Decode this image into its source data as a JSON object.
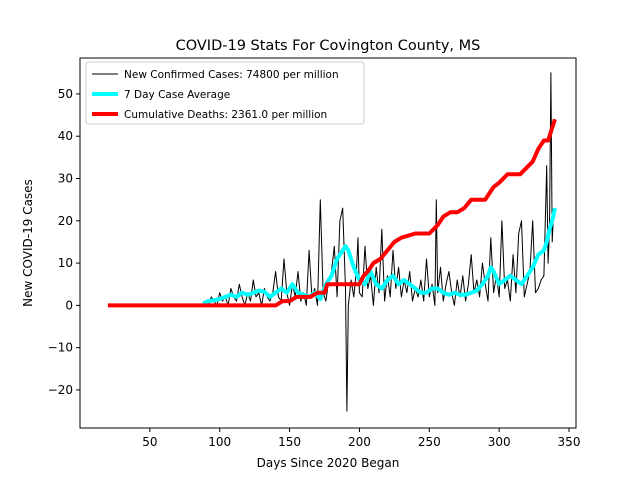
{
  "chart_data": {
    "type": "line",
    "title": "COVID-19 Stats For Covington County, MS",
    "xlabel": "Days Since 2020 Began",
    "ylabel": "New COVID-19 Cases",
    "xlim": [
      0,
      355
    ],
    "ylim": [
      -29,
      58.5
    ],
    "xticks": [
      50,
      100,
      150,
      200,
      250,
      300,
      350
    ],
    "yticks": [
      -20,
      -10,
      0,
      10,
      20,
      30,
      40,
      50
    ],
    "grid": false,
    "legend_position": "top-left",
    "series": [
      {
        "name": "New Confirmed Cases: 74800 per million",
        "color": "#000000",
        "line_width": 1,
        "x": [
          88,
          90,
          92,
          94,
          96,
          98,
          100,
          102,
          104,
          106,
          108,
          110,
          112,
          114,
          116,
          118,
          120,
          122,
          124,
          126,
          128,
          130,
          132,
          134,
          136,
          138,
          140,
          142,
          144,
          146,
          148,
          150,
          152,
          154,
          156,
          158,
          160,
          162,
          164,
          166,
          168,
          170,
          172,
          174,
          176,
          178,
          180,
          182,
          184,
          186,
          188,
          190,
          191,
          192,
          194,
          196,
          198,
          199,
          200,
          202,
          204,
          206,
          208,
          210,
          212,
          214,
          216,
          218,
          220,
          222,
          224,
          226,
          228,
          230,
          232,
          234,
          236,
          238,
          240,
          242,
          244,
          246,
          248,
          250,
          252,
          254,
          255,
          256,
          258,
          260,
          262,
          264,
          266,
          268,
          270,
          272,
          274,
          276,
          278,
          280,
          282,
          284,
          286,
          288,
          290,
          292,
          294,
          296,
          298,
          300,
          302,
          304,
          306,
          308,
          310,
          312,
          314,
          316,
          318,
          320,
          322,
          324,
          326,
          328,
          330,
          332,
          333,
          334,
          335,
          336,
          337,
          338,
          339,
          340
        ],
        "y": [
          0,
          1,
          0,
          2,
          1,
          0,
          3,
          1,
          2,
          0,
          4,
          2,
          1,
          5,
          2,
          0,
          3,
          1,
          6,
          2,
          3,
          0,
          4,
          2,
          1,
          3,
          8,
          2,
          1,
          11,
          3,
          0,
          5,
          2,
          8,
          1,
          3,
          0,
          13,
          2,
          4,
          0,
          25,
          3,
          1,
          6,
          8,
          14,
          2,
          20,
          23,
          4,
          -25,
          0,
          6,
          2,
          9,
          16,
          3,
          2,
          14,
          4,
          7,
          0,
          9,
          3,
          18,
          1,
          7,
          2,
          13,
          4,
          9,
          2,
          6,
          3,
          8,
          1,
          4,
          2,
          6,
          1,
          11,
          2,
          5,
          0,
          25,
          3,
          9,
          1,
          5,
          8,
          3,
          0,
          6,
          2,
          7,
          1,
          5,
          12,
          3,
          6,
          2,
          10,
          5,
          1,
          16,
          3,
          7,
          2,
          20,
          4,
          6,
          1,
          12,
          3,
          17,
          20,
          2,
          5,
          8,
          20,
          3,
          4,
          6,
          7,
          20,
          33,
          10,
          18,
          55,
          15,
          22,
          21
        ]
      },
      {
        "name": "7 Day Case Average",
        "color": "#00ffff",
        "line_width": 4,
        "x": [
          88,
          92,
          96,
          100,
          104,
          108,
          112,
          116,
          120,
          124,
          128,
          132,
          136,
          140,
          144,
          148,
          152,
          156,
          160,
          164,
          168,
          172,
          176,
          180,
          184,
          188,
          190,
          192,
          196,
          200,
          204,
          208,
          212,
          216,
          220,
          224,
          228,
          232,
          236,
          240,
          244,
          248,
          252,
          256,
          260,
          264,
          268,
          272,
          276,
          280,
          284,
          288,
          292,
          294,
          296,
          300,
          304,
          308,
          312,
          316,
          320,
          324,
          328,
          332,
          334,
          336,
          338,
          340
        ],
        "y": [
          0.5,
          1,
          1.2,
          1.5,
          2,
          2.5,
          2,
          3,
          2.5,
          3,
          3.5,
          3.2,
          2,
          3,
          4,
          3,
          5,
          3,
          2.5,
          2,
          3,
          1.5,
          5,
          7,
          11,
          13,
          14,
          13,
          9,
          6,
          5,
          8,
          5,
          4,
          6,
          7,
          5,
          6,
          5,
          4,
          3,
          3,
          4,
          4,
          3,
          2.5,
          3,
          2.5,
          2.5,
          3,
          3.5,
          5,
          7,
          9,
          8,
          5,
          6,
          7,
          6,
          5,
          7,
          9,
          12,
          13,
          15,
          18,
          20,
          23
        ]
      },
      {
        "name": "Cumulative Deaths: 2361.0 per million",
        "color": "#ff0000",
        "line_width": 4,
        "x": [
          20,
          140,
          145,
          150,
          155,
          160,
          165,
          170,
          175,
          177,
          200,
          203,
          206,
          210,
          215,
          220,
          225,
          230,
          240,
          250,
          253,
          256,
          260,
          265,
          270,
          275,
          280,
          285,
          290,
          292,
          296,
          300,
          306,
          315,
          318,
          321,
          324,
          328,
          330,
          332,
          335,
          338,
          340
        ],
        "y": [
          0,
          0,
          1,
          1,
          2,
          2,
          2,
          3,
          3,
          5,
          5,
          7,
          8,
          10,
          11,
          13,
          15,
          16,
          17,
          17,
          18,
          19,
          21,
          22,
          22,
          23,
          25,
          25,
          25,
          26,
          28,
          29,
          31,
          31,
          32,
          33,
          34,
          37,
          38,
          39,
          39,
          42,
          44
        ]
      }
    ]
  }
}
